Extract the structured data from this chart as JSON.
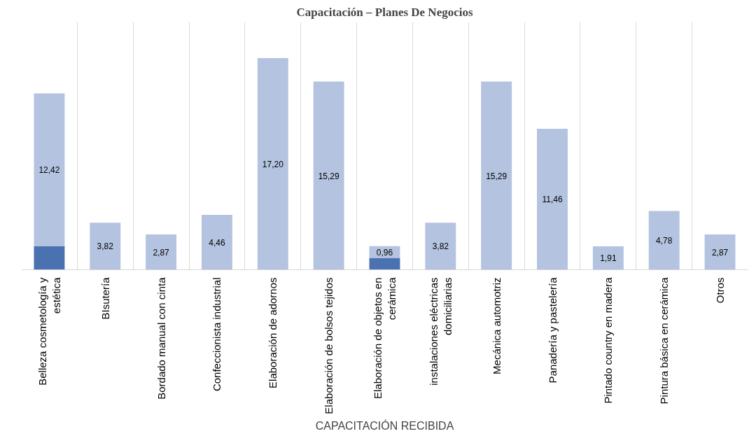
{
  "chart_data": {
    "type": "bar",
    "title": "Capacitación – Planes De Negocios",
    "xlabel": "CAPACITACIÓN RECIBIDA",
    "categories": [
      "Belleza cosmetología y estética",
      "BIsutería",
      "Bordado manual con cinta",
      "Confeccionista industrial",
      "Elaboración de adornos",
      "Elaboración de bolsos tejidos",
      "Elaboración de objetos en cerámica",
      "instalaciones eléctricas domiciliarias",
      "Mecánica automotriz",
      "Panadería y pastelería",
      "Pintado country en madera",
      "Pintura básica en cerámica",
      "Otros"
    ],
    "stacked": true,
    "grid": "x",
    "series": [
      {
        "color": "#4a72b0",
        "values": [
          1.91,
          null,
          null,
          null,
          null,
          null,
          0.96,
          null,
          null,
          null,
          null,
          null,
          null
        ]
      },
      {
        "color": "#b4c3df",
        "values": [
          12.42,
          3.82,
          2.87,
          4.46,
          17.2,
          15.29,
          0.96,
          3.82,
          15.29,
          11.46,
          1.91,
          4.78,
          2.87
        ],
        "value_labels": [
          "12,42",
          "3,82",
          "2,87",
          "4,46",
          "17,20",
          "15,29",
          "0,96",
          "3,82",
          "15,29",
          "11,46",
          "1,91",
          "4,78",
          "2,87"
        ]
      }
    ]
  }
}
